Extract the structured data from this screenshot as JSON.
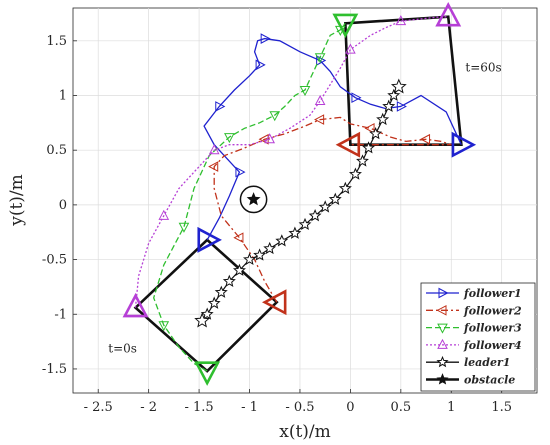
{
  "chart_data": {
    "type": "line",
    "xlabel": "x(t)/m",
    "ylabel": "y(t)/m",
    "xlim": [
      -2.75,
      1.85
    ],
    "ylim": [
      -1.72,
      1.8
    ],
    "xticks": [
      -2.5,
      -2,
      -1.5,
      -1,
      -0.5,
      0,
      0.5,
      1,
      1.5
    ],
    "xtick_labels": [
      "- 2.5",
      "- 2",
      "- 1.5",
      "- 1",
      "- 0.5",
      "0",
      "0.5",
      "1",
      "1.5"
    ],
    "yticks": [
      -1.5,
      -1,
      -0.5,
      0,
      0.5,
      1,
      1.5
    ],
    "ytick_labels": [
      "-1.5",
      "-1",
      "-0.5",
      "0",
      "0.5",
      "1",
      "1.5"
    ],
    "grid": true,
    "legend_position": "bottom-right",
    "annotations": [
      {
        "text": "t=0s",
        "x": -2.4,
        "y": -1.35
      },
      {
        "text": "t=60s",
        "x": 1.14,
        "y": 1.22
      }
    ],
    "formation_start": [
      [
        -1.42,
        -0.32
      ],
      [
        -0.73,
        -0.89
      ],
      [
        -1.42,
        -1.52
      ],
      [
        -2.13,
        -0.94
      ]
    ],
    "formation_end": [
      [
        1.1,
        0.55
      ],
      [
        0.0,
        0.55
      ],
      [
        -0.05,
        1.66
      ],
      [
        0.97,
        1.72
      ]
    ],
    "obstacle": {
      "name": "obstacle",
      "center": [
        -0.96,
        0.05
      ],
      "radius": 0.13
    },
    "series": [
      {
        "name": "follower1",
        "color": "#1f22cf",
        "dash": "solid",
        "marker": "triangle-right",
        "x": [
          -1.42,
          -1.3,
          -1.2,
          -1.1,
          -1.35,
          -1.45,
          -1.3,
          -1.15,
          -1.0,
          -0.9,
          -0.95,
          -0.92,
          -0.85,
          -0.7,
          -0.5,
          -0.3,
          -0.2,
          -0.1,
          0.05,
          0.2,
          0.35,
          0.5,
          0.7,
          0.95,
          1.1
        ],
        "y": [
          -0.32,
          -0.12,
          0.08,
          0.3,
          0.55,
          0.72,
          0.9,
          1.05,
          1.18,
          1.28,
          1.4,
          1.5,
          1.52,
          1.5,
          1.4,
          1.32,
          1.22,
          1.08,
          0.98,
          0.92,
          0.88,
          0.9,
          1.0,
          0.85,
          0.55
        ]
      },
      {
        "name": "follower2",
        "color": "#c1321b",
        "dash": "dashdot",
        "marker": "triangle-left",
        "x": [
          -0.73,
          -0.85,
          -0.95,
          -1.1,
          -1.28,
          -1.35,
          -1.35,
          -1.25,
          -1.05,
          -0.85,
          -0.65,
          -0.45,
          -0.3,
          -0.1,
          0.0,
          0.2,
          0.4,
          0.55,
          0.75,
          0.9,
          1.0,
          0.0
        ],
        "y": [
          -0.89,
          -0.7,
          -0.5,
          -0.3,
          -0.1,
          0.15,
          0.35,
          0.45,
          0.52,
          0.6,
          0.65,
          0.72,
          0.78,
          0.8,
          0.74,
          0.7,
          0.62,
          0.58,
          0.6,
          0.58,
          0.55,
          0.55
        ]
      },
      {
        "name": "follower3",
        "color": "#2fbf2f",
        "dash": "dashed",
        "marker": "triangle-down",
        "x": [
          -1.42,
          -1.55,
          -1.7,
          -1.85,
          -1.95,
          -1.85,
          -1.65,
          -1.55,
          -1.4,
          -1.2,
          -1.05,
          -0.9,
          -0.75,
          -0.65,
          -0.55,
          -0.45,
          -0.4,
          -0.35,
          -0.3,
          -0.25,
          -0.2,
          -0.1,
          -0.05
        ],
        "y": [
          -1.52,
          -1.45,
          -1.3,
          -1.1,
          -0.85,
          -0.55,
          -0.2,
          0.15,
          0.45,
          0.62,
          0.7,
          0.75,
          0.82,
          0.9,
          1.0,
          1.05,
          1.15,
          1.25,
          1.35,
          1.45,
          1.55,
          1.6,
          1.66
        ]
      },
      {
        "name": "follower4",
        "color": "#b63fd6",
        "dash": "dotted",
        "marker": "triangle-up",
        "x": [
          -2.13,
          -2.1,
          -2.0,
          -1.85,
          -1.7,
          -1.5,
          -1.35,
          -1.2,
          -1.0,
          -0.8,
          -0.6,
          -0.4,
          -0.3,
          -0.2,
          -0.1,
          0.0,
          0.2,
          0.35,
          0.5,
          0.7,
          0.9,
          0.97
        ],
        "y": [
          -0.94,
          -0.65,
          -0.35,
          -0.1,
          0.15,
          0.35,
          0.5,
          0.55,
          0.55,
          0.6,
          0.7,
          0.82,
          0.95,
          1.1,
          1.25,
          1.42,
          1.55,
          1.62,
          1.68,
          1.7,
          1.72,
          1.72
        ]
      },
      {
        "name": "leader1",
        "color": "#111111",
        "dash": "solid",
        "marker": "star",
        "x": [
          -1.47,
          -1.42,
          -1.35,
          -1.28,
          -1.2,
          -1.1,
          -1.0,
          -0.9,
          -0.8,
          -0.68,
          -0.55,
          -0.45,
          -0.35,
          -0.25,
          -0.15,
          -0.05,
          0.05,
          0.12,
          0.18,
          0.25,
          0.32,
          0.38,
          0.43,
          0.48
        ],
        "y": [
          -1.06,
          -1.0,
          -0.9,
          -0.8,
          -0.7,
          -0.6,
          -0.5,
          -0.46,
          -0.4,
          -0.33,
          -0.26,
          -0.18,
          -0.1,
          -0.02,
          0.05,
          0.15,
          0.28,
          0.4,
          0.52,
          0.65,
          0.78,
          0.9,
          1.0,
          1.08
        ]
      }
    ],
    "legend": [
      {
        "label": "follower1",
        "color": "#1f22cf",
        "dash": "solid",
        "marker": "triangle-right"
      },
      {
        "label": "follower2",
        "color": "#c1321b",
        "dash": "dashdot",
        "marker": "triangle-left"
      },
      {
        "label": "follower3",
        "color": "#2fbf2f",
        "dash": "dashed",
        "marker": "triangle-down"
      },
      {
        "label": "follower4",
        "color": "#b63fd6",
        "dash": "dotted",
        "marker": "triangle-up"
      },
      {
        "label": "leader1",
        "color": "#111111",
        "dash": "solid",
        "marker": "star"
      },
      {
        "label": "obstacle",
        "color": "#111111",
        "dash": "solid",
        "marker": "star-bold"
      }
    ]
  }
}
